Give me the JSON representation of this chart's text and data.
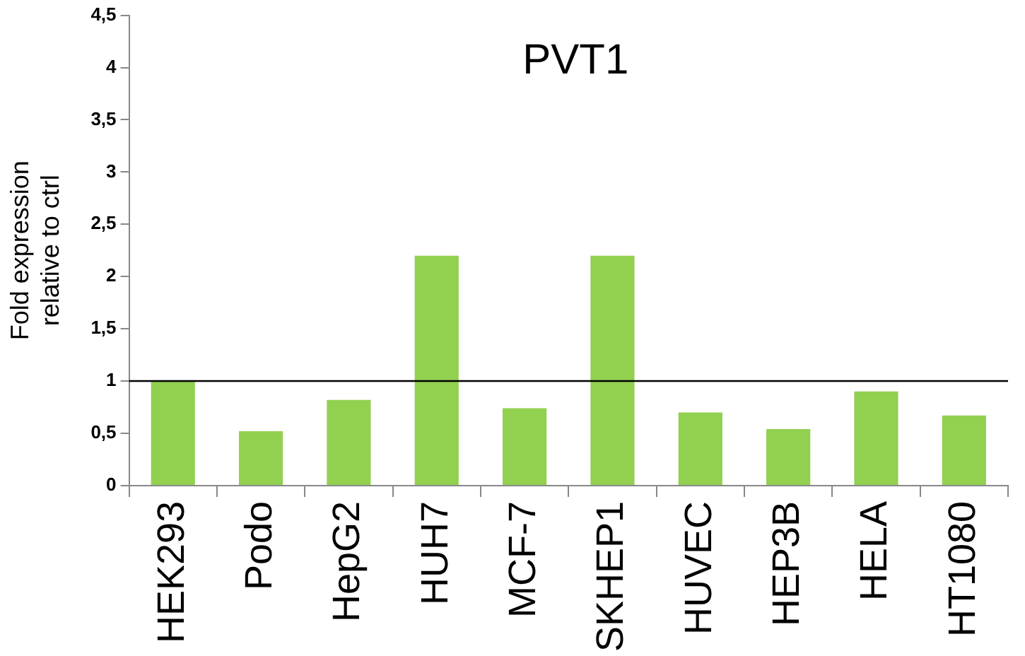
{
  "chart_data": {
    "type": "bar",
    "title": "PVT1",
    "ylabel": "Fold expression relative to ctrl",
    "categories": [
      "HEK293",
      "Podo",
      "HepG2",
      "HUH7",
      "MCF-7",
      "SKHEP1",
      "HUVEC",
      "HEP3B",
      "HELA",
      "HT1080"
    ],
    "values": [
      1,
      0.52,
      0.82,
      2.2,
      0.74,
      2.2,
      0.7,
      0.54,
      0.9,
      0.67
    ],
    "color": "#92d050",
    "ylim": [
      0,
      4.5
    ],
    "yticks": [
      0,
      {
        "value": 0.5,
        "label": "0,5"
      },
      1,
      {
        "value": 1.5,
        "label": "1,5"
      },
      2,
      {
        "value": 2.5,
        "label": "2,5"
      },
      3,
      {
        "value": 3.5,
        "label": "3,5"
      },
      4,
      {
        "value": 4.5,
        "label": "4,5"
      }
    ],
    "grid": false,
    "legend": false,
    "ref_lines": [
      {
        "axis": "y",
        "value": 1,
        "color": "#000000"
      }
    ]
  }
}
